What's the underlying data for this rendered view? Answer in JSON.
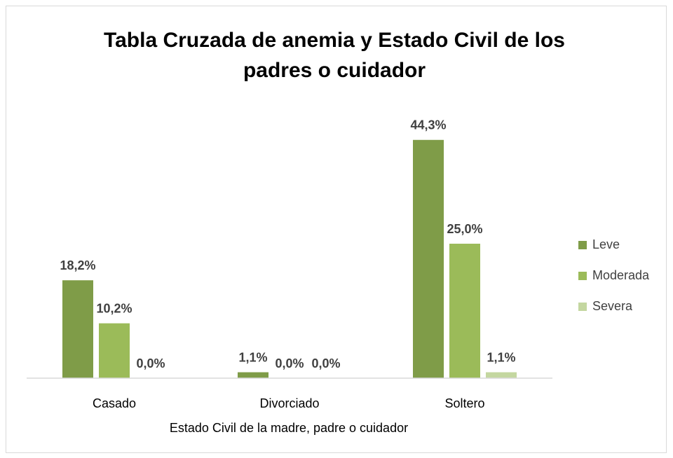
{
  "chart_data": {
    "type": "bar",
    "title": "Tabla Cruzada de anemia y Estado Civil de los padres o cuidador",
    "x_label": "Estado Civil de la madre, padre o cuidador",
    "categories": [
      "Casado",
      "Divorciado",
      "Soltero"
    ],
    "series": [
      {
        "name": "Leve",
        "color": "#7f9c48",
        "values": [
          18.2,
          1.1,
          44.3
        ],
        "value_labels": [
          "18,2%",
          "1,1%",
          "44,3%"
        ]
      },
      {
        "name": "Moderada",
        "color": "#9bbb59",
        "values": [
          10.2,
          0,
          25
        ],
        "value_labels": [
          "10,2%",
          "0,0%",
          "25,0%"
        ]
      },
      {
        "name": "Severa",
        "color": "#c4d7a0",
        "values": [
          0,
          0,
          1.1
        ],
        "value_labels": [
          "0,0%",
          "0,0%",
          "1,1%"
        ]
      }
    ],
    "ylim": [
      0,
      50
    ],
    "legend": "right"
  }
}
